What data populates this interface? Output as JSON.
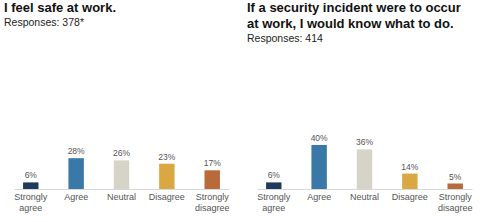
{
  "chart_data": [
    {
      "type": "bar",
      "title": "I feel safe at work.",
      "subtitle": "Responses: 378*",
      "categories": [
        "Strongly agree",
        "Agree",
        "Neutral",
        "Disagree",
        "Strongly disagree"
      ],
      "values": [
        6,
        28,
        26,
        23,
        17
      ],
      "value_labels": [
        "6%",
        "28%",
        "26%",
        "23%",
        "17%"
      ],
      "colors": [
        "#1f3a5a",
        "#3a78a8",
        "#d6d3c8",
        "#d9a843",
        "#b86a3a"
      ],
      "ylim": [
        0,
        40
      ],
      "data_labels": true,
      "tick_labels": "x"
    },
    {
      "type": "bar",
      "title": "If a security incident were to occur at work, I would know what to do.",
      "subtitle": "Responses: 414",
      "categories": [
        "Strongly agree",
        "Agree",
        "Neutral",
        "Disagree",
        "Strongly disagree"
      ],
      "values": [
        6,
        40,
        36,
        14,
        5
      ],
      "value_labels": [
        "6%",
        "40%",
        "36%",
        "14%",
        "5%"
      ],
      "colors": [
        "#1f3a5a",
        "#3a78a8",
        "#d6d3c8",
        "#d9a843",
        "#b86a3a"
      ],
      "ylim": [
        0,
        40
      ],
      "data_labels": true,
      "tick_labels": "x"
    }
  ]
}
